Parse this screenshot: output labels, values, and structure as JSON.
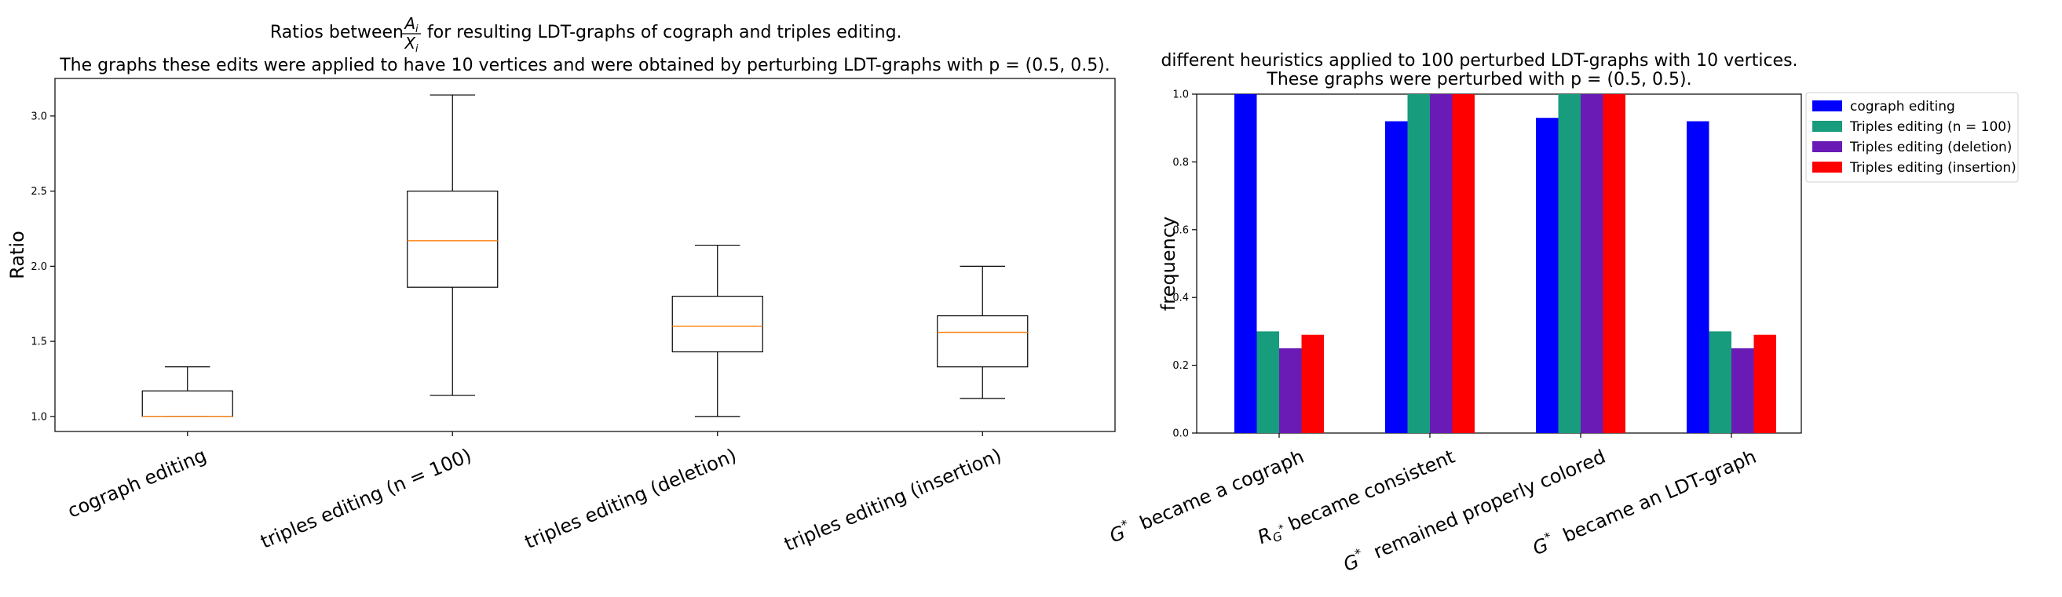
{
  "chart_data": [
    {
      "type": "box",
      "title_line1_prefix": "Ratios between",
      "title_fraction_numerator": "A",
      "title_fraction_numerator_sub": "i",
      "title_fraction_denominator": "X",
      "title_fraction_denominator_sub": "i",
      "title_line1_suffix": "for resulting LDT-graphs of cograph and triples editing.",
      "title_line2": "The graphs these edits were applied to have 10 vertices and were obtained by perturbing LDT-graphs with p = (0.5, 0.5).",
      "ylabel": "Ratio",
      "ylim": [
        0.9,
        3.25
      ],
      "yticks": [
        "1.0",
        "1.5",
        "2.0",
        "2.5",
        "3.0"
      ],
      "categories": [
        "cograph editing",
        "triples editing (n = 100)",
        "triples editing (deletion)",
        "triples editing (insertion)"
      ],
      "boxes": [
        {
          "whisker_low": 1.0,
          "q1": 1.0,
          "median": 1.0,
          "q3": 1.17,
          "whisker_high": 1.33
        },
        {
          "whisker_low": 1.14,
          "q1": 1.86,
          "median": 2.17,
          "q3": 2.5,
          "whisker_high": 3.14
        },
        {
          "whisker_low": 1.0,
          "q1": 1.43,
          "median": 1.6,
          "q3": 1.8,
          "whisker_high": 2.14
        },
        {
          "whisker_low": 1.12,
          "q1": 1.33,
          "median": 1.56,
          "q3": 1.67,
          "whisker_high": 2.0
        }
      ],
      "colors": {
        "box": "#000000",
        "median": "#ff7f0e"
      }
    },
    {
      "type": "bar",
      "title_line1": "different heuristics applied to 100 perturbed LDT-graphs with 10 vertices.",
      "title_line2": "These graphs were perturbed with p = (0.5, 0.5).",
      "ylabel": "frequency",
      "ylim": [
        0,
        1.0
      ],
      "yticks": [
        "0.0",
        "0.2",
        "0.4",
        "0.6",
        "0.8",
        "1.0"
      ],
      "categories": [
        "G*  became a cograph",
        "R_G* became consistent",
        "G*  remained properly colored",
        "G*  became an LDT-graph"
      ],
      "series": [
        {
          "name": "cograph editing",
          "color": "#0000ff",
          "values": [
            1.0,
            0.92,
            0.93,
            0.92
          ]
        },
        {
          "name": "Triples editing (n = 100)",
          "color": "#179c7d",
          "values": [
            0.3,
            1.0,
            1.0,
            0.3
          ]
        },
        {
          "name": "Triples editing (deletion)",
          "color": "#6a1bb5",
          "values": [
            0.25,
            1.0,
            1.0,
            0.25
          ]
        },
        {
          "name": "Triples editing (insertion)",
          "color": "#ff0000",
          "values": [
            0.29,
            1.0,
            1.0,
            0.29
          ]
        }
      ],
      "legend": "outside-top-right"
    }
  ]
}
